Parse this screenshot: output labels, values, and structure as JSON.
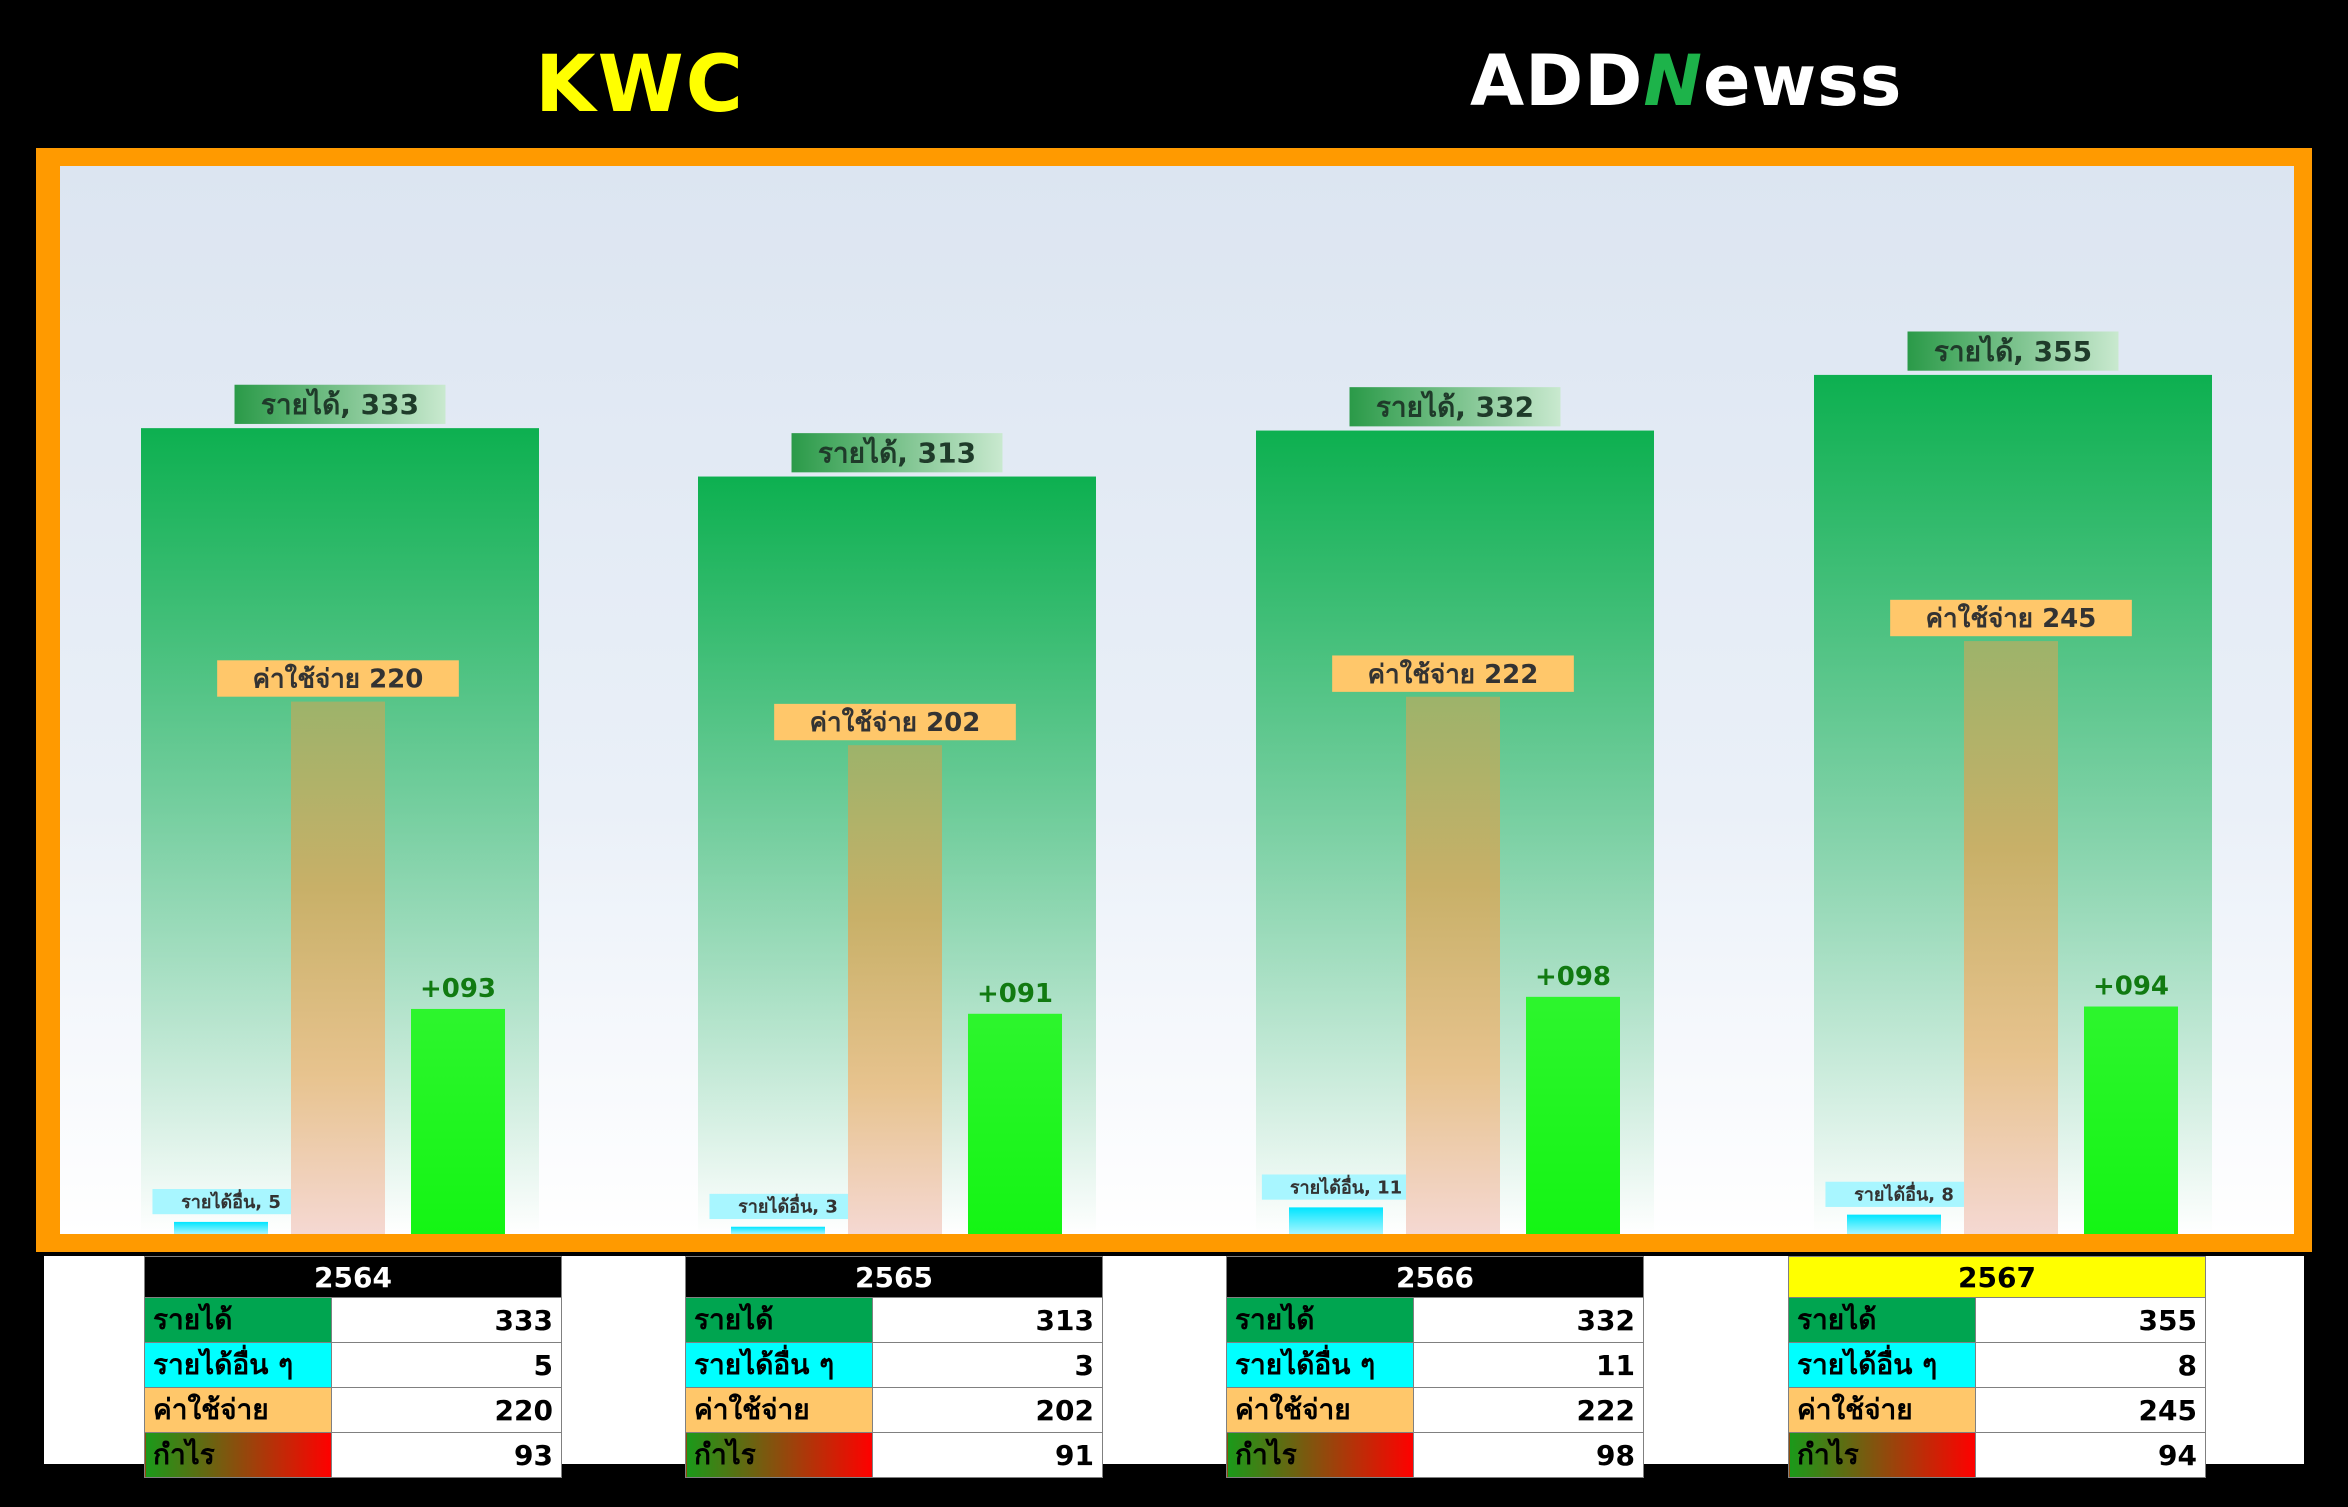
{
  "header": {
    "ticker": "KWC",
    "logo_prefix": "ADD",
    "logo_n": "N",
    "logo_suffix": "ewss"
  },
  "colors": {
    "revenue": "#0db050",
    "other_income": "#00ffff",
    "expense": "#c8a66a",
    "profit": "#14f514",
    "frame": "#ff9a00",
    "highlight_year": "#ffff00"
  },
  "chart_data": {
    "type": "bar",
    "categories": [
      "2564",
      "2565",
      "2566",
      "2567"
    ],
    "series": [
      {
        "name": "รายได้",
        "values": [
          333,
          313,
          332,
          355
        ],
        "labels": [
          "รายได้, 333",
          "รายได้, 313",
          "รายได้, 332",
          "รายได้, 355"
        ]
      },
      {
        "name": "รายได้อื่น",
        "values": [
          5,
          3,
          11,
          8
        ],
        "labels": [
          "รายได้อื่น, 5",
          "รายได้อื่น, 3",
          "รายได้อื่น, 11",
          "รายได้อื่น, 8"
        ]
      },
      {
        "name": "ค่าใช้จ่าย",
        "values": [
          220,
          202,
          222,
          245
        ],
        "labels": [
          "ค่าใช้จ่าย 220",
          "ค่าใช้จ่าย 202",
          "ค่าใช้จ่าย 222",
          "ค่าใช้จ่าย 245"
        ]
      },
      {
        "name": "กำไร",
        "values": [
          93,
          91,
          98,
          94
        ],
        "labels": [
          "+093",
          "+091",
          "+098",
          "+094"
        ]
      }
    ],
    "ylim": [
      0,
      400
    ],
    "grid": false,
    "legend": "none"
  },
  "tables": [
    {
      "year": "2564",
      "current": false,
      "rows": [
        {
          "label": "รายได้",
          "value": "333",
          "kind": "rev"
        },
        {
          "label": "รายได้อื่น ๆ",
          "value": "5",
          "kind": "oth"
        },
        {
          "label": "ค่าใช้จ่าย",
          "value": "220",
          "kind": "exp"
        },
        {
          "label": "กำไร",
          "value": "93",
          "kind": "pro"
        }
      ]
    },
    {
      "year": "2565",
      "current": false,
      "rows": [
        {
          "label": "รายได้",
          "value": "313",
          "kind": "rev"
        },
        {
          "label": "รายได้อื่น ๆ",
          "value": "3",
          "kind": "oth"
        },
        {
          "label": "ค่าใช้จ่าย",
          "value": "202",
          "kind": "exp"
        },
        {
          "label": "กำไร",
          "value": "91",
          "kind": "pro"
        }
      ]
    },
    {
      "year": "2566",
      "current": false,
      "rows": [
        {
          "label": "รายได้",
          "value": "332",
          "kind": "rev"
        },
        {
          "label": "รายได้อื่น ๆ",
          "value": "11",
          "kind": "oth"
        },
        {
          "label": "ค่าใช้จ่าย",
          "value": "222",
          "kind": "exp"
        },
        {
          "label": "กำไร",
          "value": "98",
          "kind": "pro"
        }
      ]
    },
    {
      "year": "2567",
      "current": true,
      "rows": [
        {
          "label": "รายได้",
          "value": "355",
          "kind": "rev"
        },
        {
          "label": "รายได้อื่น ๆ",
          "value": "8",
          "kind": "oth"
        },
        {
          "label": "ค่าใช้จ่าย",
          "value": "245",
          "kind": "exp"
        },
        {
          "label": "กำไร",
          "value": "94",
          "kind": "pro"
        }
      ]
    }
  ]
}
